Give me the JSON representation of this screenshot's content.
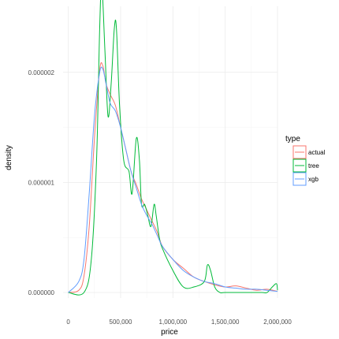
{
  "chart_data": {
    "type": "line",
    "title": "",
    "xlabel": "price",
    "ylabel": "density",
    "xlim": [
      -50000,
      2000000
    ],
    "ylim": [
      -5e-08,
      2.6e-06
    ],
    "x_ticks": [
      0,
      500000,
      1000000,
      1500000,
      2000000
    ],
    "x_tick_labels": [
      "0",
      "500,000",
      "1,000,000",
      "1,500,000",
      "2,000,000"
    ],
    "y_ticks": [
      0,
      1e-06,
      2e-06
    ],
    "y_tick_labels": [
      "0.000000",
      "0.000001",
      "0.000002"
    ],
    "grid": true,
    "legend": {
      "title": "type",
      "placement": "right"
    },
    "series": [
      {
        "name": "actual",
        "color": "#F8766D",
        "x": [
          0,
          100000,
          150000,
          200000,
          250000,
          300000,
          330000,
          360000,
          400000,
          450000,
          500000,
          550000,
          600000,
          650000,
          700000,
          750000,
          800000,
          850000,
          900000,
          1000000,
          1100000,
          1200000,
          1300000,
          1400000,
          1500000,
          1600000,
          1700000,
          1800000,
          1900000,
          2000000
        ],
        "y": [
          0,
          2e-08,
          1.5e-07,
          6e-07,
          1.4e-06,
          2.02e-06,
          2.06e-06,
          1.9e-06,
          1.8e-06,
          1.7e-06,
          1.5e-06,
          1.3e-06,
          1.1e-06,
          9.8e-07,
          8.5e-07,
          7.5e-07,
          6.5e-07,
          5.5e-07,
          4.2e-07,
          3e-07,
          2.2e-07,
          1.4e-07,
          1e-07,
          7e-08,
          5e-08,
          6e-08,
          4e-08,
          2e-08,
          3e-08,
          1e-08
        ]
      },
      {
        "name": "tree",
        "color": "#00BA38",
        "x": [
          0,
          150000,
          220000,
          270000,
          300000,
          320000,
          350000,
          380000,
          410000,
          440000,
          460000,
          490000,
          530000,
          580000,
          610000,
          650000,
          680000,
          700000,
          730000,
          760000,
          790000,
          820000,
          840000,
          870000,
          900000,
          1000000,
          1100000,
          1200000,
          1300000,
          1330000,
          1360000,
          1400000,
          1450000,
          1500000,
          1700000,
          1850000,
          1900000,
          1950000,
          1990000,
          2000000
        ],
        "y": [
          0,
          0,
          3e-07,
          1.2e-06,
          2.4e-06,
          2.8e-06,
          2.2e-06,
          1.6e-06,
          1.9e-06,
          2.4e-06,
          2.4e-06,
          1.7e-06,
          1.2e-06,
          1.1e-06,
          9e-07,
          1.4e-06,
          1.2e-06,
          8e-07,
          8e-07,
          7e-07,
          6e-07,
          8e-07,
          7e-07,
          5e-07,
          4e-07,
          2e-07,
          5e-08,
          5e-08,
          1e-07,
          2.5e-07,
          2e-07,
          5e-08,
          0,
          0,
          0,
          0,
          0,
          5e-08,
          8e-08,
          2e-08
        ]
      },
      {
        "name": "xgb",
        "color": "#619CFF",
        "x": [
          0,
          100000,
          150000,
          200000,
          250000,
          300000,
          330000,
          360000,
          400000,
          450000,
          500000,
          550000,
          600000,
          650000,
          700000,
          750000,
          800000,
          850000,
          900000,
          1000000,
          1100000,
          1200000,
          1300000,
          1400000,
          1500000,
          1600000,
          1700000,
          1800000,
          1900000,
          2000000
        ],
        "y": [
          0,
          1e-07,
          3e-07,
          9e-07,
          1.6e-06,
          2e-06,
          2.03e-06,
          1.9e-06,
          1.72e-06,
          1.65e-06,
          1.5e-06,
          1.3e-06,
          1.1e-06,
          9.5e-07,
          8e-07,
          7e-07,
          6.2e-07,
          5.2e-07,
          4.2e-07,
          3e-07,
          2e-07,
          1.4e-07,
          1e-07,
          8e-08,
          5e-08,
          4e-08,
          3e-08,
          3e-08,
          2e-08,
          1e-08
        ]
      }
    ]
  }
}
